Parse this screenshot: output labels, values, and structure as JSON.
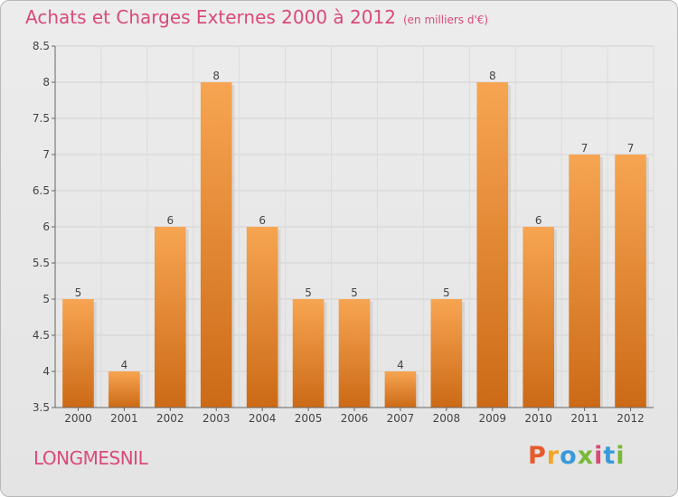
{
  "header": {
    "title": "Achats et Charges Externes 2000 à 2012",
    "subtitle": "(en milliers d'€)"
  },
  "footer": {
    "location": "LONGMESNIL",
    "brand": "Proxiti",
    "brand_colors": [
      "#e85a2a",
      "#f2a526",
      "#3a9ad9",
      "#7ab83a",
      "#d94a79",
      "#3a9ad9",
      "#7ab83a"
    ]
  },
  "colors": {
    "title": "#d94a79",
    "bar_top": "#f7a552",
    "bar_bottom": "#cc6a16"
  },
  "chart_data": {
    "type": "bar",
    "title": "Achats et Charges Externes 2000 à 2012",
    "subtitle": "(en milliers d'€)",
    "categories": [
      "2000",
      "2001",
      "2002",
      "2003",
      "2004",
      "2005",
      "2006",
      "2007",
      "2008",
      "2009",
      "2010",
      "2011",
      "2012"
    ],
    "values": [
      5,
      4,
      6,
      8,
      6,
      5,
      5,
      4,
      5,
      8,
      6,
      7,
      7
    ],
    "data_labels": [
      "5",
      "4",
      "6",
      "8",
      "6",
      "5",
      "5",
      "4",
      "5",
      "8",
      "6",
      "7",
      "7"
    ],
    "ylim": [
      3.5,
      8.5
    ],
    "yticks": [
      "3.5",
      "4",
      "4.5",
      "5",
      "5.5",
      "6",
      "6.5",
      "7",
      "7.5",
      "8",
      "8.5"
    ],
    "grid": true,
    "xlabel": "",
    "ylabel": ""
  }
}
